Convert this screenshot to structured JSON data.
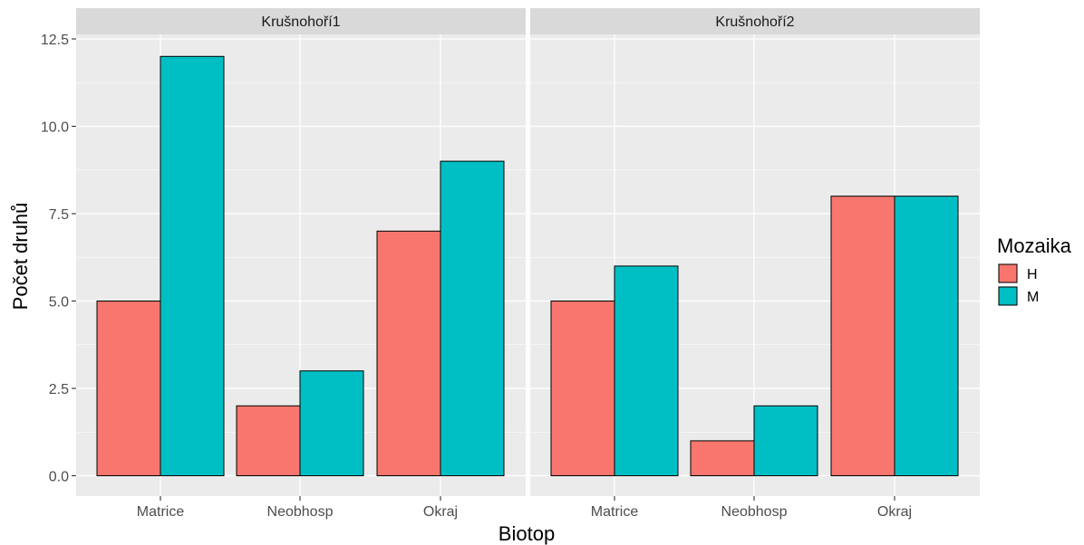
{
  "chart_data": {
    "type": "bar",
    "xlabel": "Biotop",
    "ylabel": "Počet druhů",
    "ylim": [
      -0.6,
      13.1
    ],
    "y_ticks": [
      "0.0",
      "2.5",
      "5.0",
      "7.5",
      "10.0",
      "12.5"
    ],
    "y_tick_values": [
      0,
      2.5,
      5,
      7.5,
      10,
      12.5
    ],
    "categories": [
      "Matrice",
      "Neobhosp",
      "Okraj"
    ],
    "legend": {
      "title": "Mozaika",
      "position": "right",
      "entries": [
        {
          "name": "H",
          "color": "#F8766D"
        },
        {
          "name": "M",
          "color": "#00BFC4"
        }
      ]
    },
    "panels": [
      {
        "title": "Krušnohoří1",
        "series": [
          {
            "name": "H",
            "values": [
              5,
              2,
              7
            ]
          },
          {
            "name": "M",
            "values": [
              12,
              3,
              9
            ]
          }
        ]
      },
      {
        "title": "Krušnohoří2",
        "series": [
          {
            "name": "H",
            "values": [
              5,
              1,
              8
            ]
          },
          {
            "name": "M",
            "values": [
              6,
              2,
              8
            ]
          }
        ]
      }
    ],
    "grid": true,
    "colors": {
      "panel_background": "#EBEBEB",
      "strip_background": "#D9D9D9",
      "gridline": "#FFFFFF",
      "bar_outline": "#000000"
    }
  }
}
